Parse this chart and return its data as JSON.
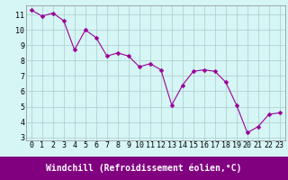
{
  "x": [
    0,
    1,
    2,
    3,
    4,
    5,
    6,
    7,
    8,
    9,
    10,
    11,
    12,
    13,
    14,
    15,
    16,
    17,
    18,
    19,
    20,
    21,
    22,
    23
  ],
  "y": [
    11.3,
    10.9,
    11.1,
    10.6,
    8.7,
    10.0,
    9.5,
    8.3,
    8.5,
    8.3,
    7.6,
    7.8,
    7.4,
    5.1,
    6.4,
    7.3,
    7.4,
    7.3,
    6.6,
    5.1,
    3.3,
    3.7,
    4.5,
    4.6
  ],
  "line_color": "#990099",
  "marker": "D",
  "marker_size": 2.5,
  "bg_color": "#d6f5f5",
  "grid_color": "#aacccc",
  "xlabel": "Windchill (Refroidissement éolien,°C)",
  "xlabel_bg": "#800080",
  "xlabel_color": "#ffffff",
  "xlabel_fontsize": 7.0,
  "ylim": [
    2.8,
    11.6
  ],
  "yticks": [
    3,
    4,
    5,
    6,
    7,
    8,
    9,
    10,
    11
  ],
  "xticks": [
    0,
    1,
    2,
    3,
    4,
    5,
    6,
    7,
    8,
    9,
    10,
    11,
    12,
    13,
    14,
    15,
    16,
    17,
    18,
    19,
    20,
    21,
    22,
    23
  ],
  "tick_fontsize": 6.0
}
